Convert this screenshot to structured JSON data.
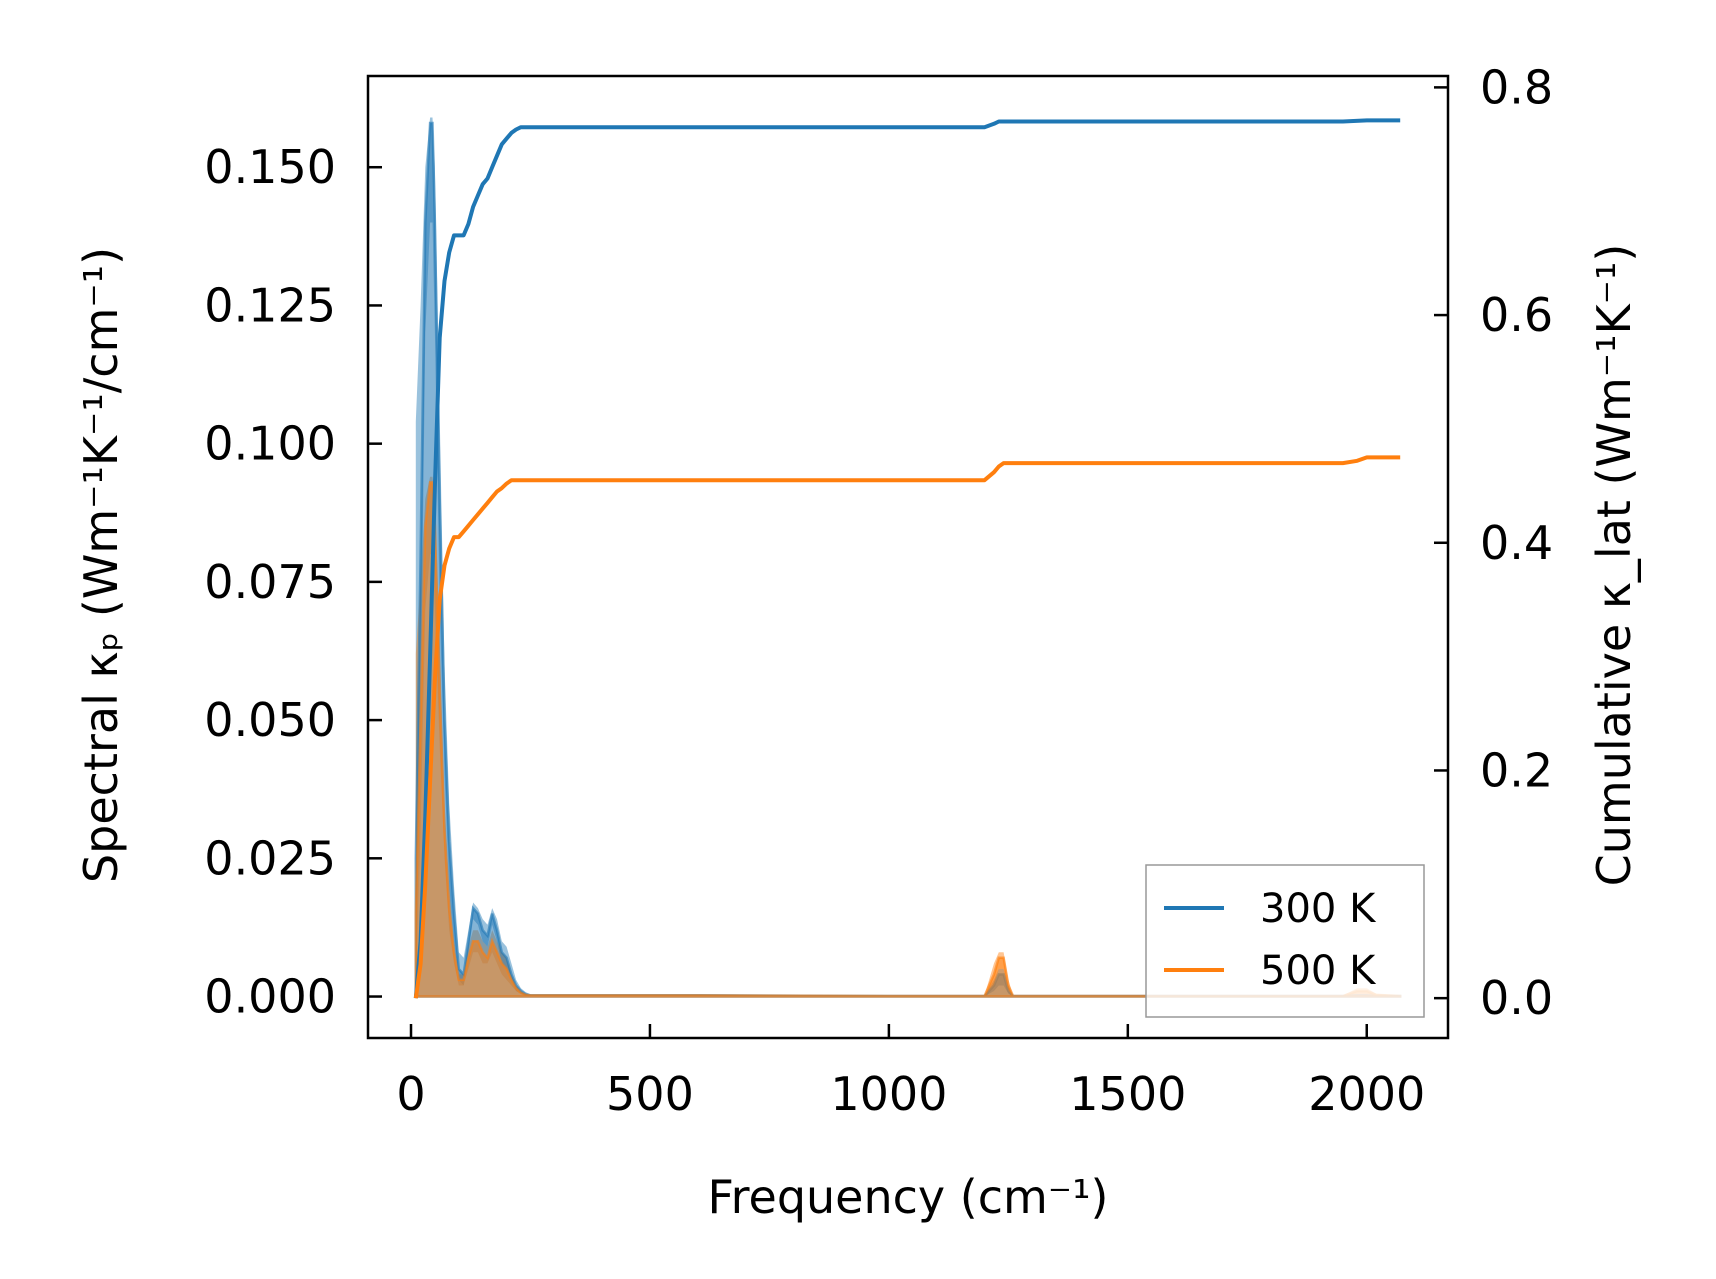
{
  "chart_data": {
    "type": "line",
    "xlabel": "Frequency (cm⁻¹)",
    "ylabel_left": "Spectral κₚ (Wm⁻¹K⁻¹/cm⁻¹)",
    "ylabel_right": "Cumulative κ_lat (Wm⁻¹K⁻¹)",
    "xlim": [
      -90,
      2170
    ],
    "ylim_left": [
      -0.0075,
      0.1665
    ],
    "ylim_right": [
      -0.035,
      0.81
    ],
    "x_ticks": [
      0,
      500,
      1000,
      1500,
      2000
    ],
    "y_left_ticks": [
      "0.000",
      "0.025",
      "0.050",
      "0.075",
      "0.100",
      "0.125",
      "0.150"
    ],
    "y_right_ticks": [
      "0.0",
      "0.2",
      "0.4",
      "0.6",
      "0.8"
    ],
    "legend": {
      "location": "lower-right",
      "entries": [
        "300 K",
        "500 K"
      ]
    },
    "colors": {
      "300 K": "#1f77b4",
      "500 K": "#ff7f0e"
    },
    "series": [
      {
        "name": "300 K",
        "spectral": {
          "x": [
            10,
            20,
            30,
            40,
            45,
            50,
            60,
            70,
            80,
            90,
            100,
            110,
            120,
            130,
            140,
            150,
            160,
            170,
            180,
            190,
            200,
            210,
            220,
            230,
            240,
            250,
            600,
            1000,
            1200,
            1220,
            1230,
            1240,
            1250,
            1260,
            1500,
            1950,
            1980,
            2000,
            2020,
            2070
          ],
          "y": [
            0.025,
            0.08,
            0.14,
            0.158,
            0.158,
            0.14,
            0.09,
            0.05,
            0.028,
            0.015,
            0.005,
            0.004,
            0.01,
            0.016,
            0.015,
            0.012,
            0.011,
            0.015,
            0.012,
            0.008,
            0.007,
            0.004,
            0.002,
            0.001,
            0.0004,
            0.0002,
            0.0002,
            0.0001,
            0.0001,
            0.002,
            0.004,
            0.004,
            0.001,
            0.0001,
            0.0001,
            0.0001,
            0.0002,
            0.0002,
            0.0001,
            0.0001
          ]
        },
        "cumulative": {
          "x": [
            10,
            20,
            30,
            40,
            50,
            60,
            70,
            80,
            90,
            100,
            110,
            120,
            130,
            140,
            150,
            160,
            170,
            180,
            190,
            200,
            210,
            220,
            230,
            240,
            250,
            1200,
            1220,
            1230,
            1240,
            1250,
            1500,
            1950,
            2000,
            2070
          ],
          "y": [
            0.0,
            0.05,
            0.16,
            0.3,
            0.45,
            0.58,
            0.63,
            0.655,
            0.67,
            0.67,
            0.67,
            0.68,
            0.695,
            0.705,
            0.715,
            0.72,
            0.73,
            0.74,
            0.75,
            0.755,
            0.76,
            0.763,
            0.765,
            0.765,
            0.765,
            0.765,
            0.768,
            0.77,
            0.77,
            0.77,
            0.77,
            0.77,
            0.771,
            0.771
          ]
        },
        "uncertainty_band": {
          "x": [
            10,
            20,
            30,
            40,
            45,
            50,
            60,
            70,
            80,
            90,
            100,
            110,
            120,
            130,
            140,
            150,
            160,
            170,
            180,
            190,
            200,
            210,
            220,
            230,
            240,
            250,
            600,
            1000,
            1200,
            1220,
            1230,
            1240,
            1250,
            1260,
            1500,
            1950,
            1980,
            2000,
            2020,
            2070
          ],
          "lower": [
            0.0,
            0.05,
            0.12,
            0.14,
            0.14,
            0.12,
            0.07,
            0.04,
            0.02,
            0.01,
            0.003,
            0.002,
            0.008,
            0.014,
            0.013,
            0.01,
            0.009,
            0.013,
            0.01,
            0.006,
            0.005,
            0.003,
            0.001,
            0.0005,
            0.0001,
            0.0001,
            0.0001,
            0.0,
            0.0,
            0.001,
            0.002,
            0.002,
            0.0005,
            0.0,
            0.0,
            0.0,
            0.0,
            0.0,
            0.0,
            0.0
          ],
          "upper": [
            0.104,
            0.125,
            0.15,
            0.159,
            0.159,
            0.15,
            0.105,
            0.06,
            0.035,
            0.02,
            0.008,
            0.007,
            0.012,
            0.017,
            0.016,
            0.014,
            0.013,
            0.016,
            0.014,
            0.01,
            0.009,
            0.006,
            0.003,
            0.0015,
            0.0008,
            0.0004,
            0.0004,
            0.0002,
            0.0002,
            0.003,
            0.005,
            0.005,
            0.002,
            0.0002,
            0.0002,
            0.0002,
            0.0004,
            0.0004,
            0.0002,
            0.0002
          ]
        }
      },
      {
        "name": "500 K",
        "spectral": {
          "x": [
            10,
            20,
            30,
            40,
            45,
            50,
            60,
            70,
            80,
            90,
            100,
            110,
            120,
            130,
            140,
            150,
            160,
            170,
            180,
            190,
            200,
            210,
            220,
            230,
            240,
            250,
            600,
            1000,
            1200,
            1220,
            1230,
            1240,
            1250,
            1260,
            1500,
            1950,
            1980,
            2000,
            2020,
            2070
          ],
          "y": [
            0.015,
            0.05,
            0.085,
            0.093,
            0.093,
            0.085,
            0.055,
            0.03,
            0.016,
            0.008,
            0.003,
            0.003,
            0.007,
            0.01,
            0.01,
            0.008,
            0.007,
            0.01,
            0.008,
            0.006,
            0.005,
            0.003,
            0.0015,
            0.0007,
            0.0003,
            0.0002,
            0.0002,
            0.0001,
            0.0001,
            0.004,
            0.007,
            0.007,
            0.002,
            0.0001,
            0.0001,
            0.0001,
            0.001,
            0.001,
            0.0003,
            0.0001
          ]
        },
        "cumulative": {
          "x": [
            10,
            20,
            30,
            40,
            50,
            60,
            70,
            80,
            90,
            100,
            110,
            120,
            130,
            140,
            150,
            160,
            170,
            180,
            190,
            200,
            210,
            220,
            230,
            240,
            250,
            1200,
            1220,
            1230,
            1240,
            1250,
            1500,
            1950,
            1980,
            2000,
            2020,
            2070
          ],
          "y": [
            0.0,
            0.03,
            0.1,
            0.19,
            0.28,
            0.35,
            0.38,
            0.395,
            0.405,
            0.405,
            0.41,
            0.415,
            0.42,
            0.425,
            0.43,
            0.435,
            0.44,
            0.445,
            0.448,
            0.452,
            0.455,
            0.455,
            0.455,
            0.455,
            0.455,
            0.455,
            0.462,
            0.467,
            0.47,
            0.47,
            0.47,
            0.47,
            0.472,
            0.475,
            0.475,
            0.475
          ]
        },
        "uncertainty_band": {
          "x": [
            10,
            20,
            30,
            40,
            45,
            50,
            60,
            70,
            80,
            90,
            100,
            110,
            120,
            130,
            140,
            150,
            160,
            170,
            180,
            190,
            200,
            210,
            220,
            230,
            240,
            250,
            600,
            1000,
            1200,
            1220,
            1230,
            1240,
            1250,
            1260,
            1500,
            1950,
            1980,
            2000,
            2020,
            2070
          ],
          "lower": [
            0.0,
            0.03,
            0.07,
            0.08,
            0.08,
            0.07,
            0.045,
            0.025,
            0.012,
            0.006,
            0.002,
            0.002,
            0.005,
            0.008,
            0.008,
            0.006,
            0.006,
            0.008,
            0.006,
            0.004,
            0.003,
            0.002,
            0.001,
            0.0004,
            0.0001,
            0.0001,
            0.0001,
            0.0,
            0.0,
            0.002,
            0.005,
            0.005,
            0.001,
            0.0,
            0.0,
            0.0,
            0.0005,
            0.0005,
            0.0001,
            0.0
          ],
          "upper": [
            0.062,
            0.075,
            0.09,
            0.094,
            0.094,
            0.09,
            0.065,
            0.035,
            0.02,
            0.01,
            0.004,
            0.004,
            0.009,
            0.012,
            0.012,
            0.01,
            0.009,
            0.012,
            0.01,
            0.008,
            0.007,
            0.004,
            0.002,
            0.001,
            0.0005,
            0.0003,
            0.0003,
            0.0002,
            0.0002,
            0.006,
            0.008,
            0.008,
            0.003,
            0.0002,
            0.0002,
            0.0002,
            0.0015,
            0.0015,
            0.0005,
            0.0002
          ]
        }
      }
    ]
  }
}
